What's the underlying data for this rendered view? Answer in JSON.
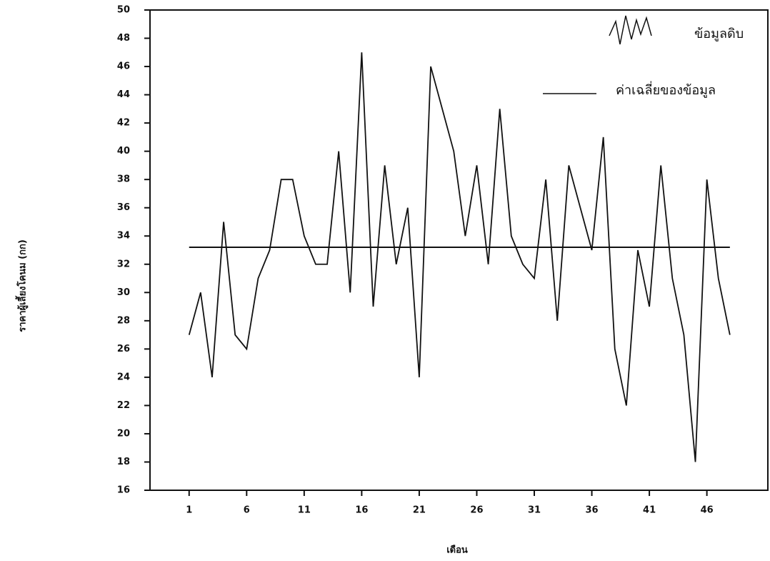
{
  "chart_data": {
    "type": "line",
    "y_label": "ราคาผู้เลี้ยงโคนม (กก)",
    "x_label": "เดือน",
    "x": [
      1,
      2,
      3,
      4,
      5,
      6,
      7,
      8,
      9,
      10,
      11,
      12,
      13,
      14,
      15,
      16,
      17,
      18,
      19,
      20,
      21,
      22,
      23,
      24,
      25,
      26,
      27,
      28,
      29,
      30,
      31,
      32,
      33,
      34,
      35,
      36,
      37,
      38,
      39,
      40,
      41,
      42,
      43,
      44,
      45,
      46,
      47,
      48
    ],
    "series": [
      {
        "name": "ข้อมูลดิบ",
        "color": "#111111",
        "values": [
          27,
          30,
          24,
          35,
          27,
          26,
          31,
          33,
          38,
          38,
          34,
          32,
          32,
          40,
          30,
          47,
          29,
          39,
          32,
          36,
          24,
          46,
          43,
          40,
          34,
          39,
          32,
          43,
          34,
          32,
          31,
          38,
          28,
          39,
          36,
          33,
          41,
          26,
          22,
          33,
          29,
          39,
          31,
          27,
          18,
          38,
          31,
          27
        ]
      }
    ],
    "reference_line": {
      "name": "ค่าเฉลี่ยของข้อมูล",
      "value": 33.2,
      "color": "#111111"
    },
    "xlim": [
      -2.4,
      51.3
    ],
    "ylim": [
      16,
      50
    ],
    "xticks": [
      1,
      6,
      11,
      16,
      21,
      26,
      31,
      36,
      41,
      46
    ],
    "yticks": [
      16,
      18,
      20,
      22,
      24,
      26,
      28,
      30,
      32,
      34,
      36,
      38,
      40,
      42,
      44,
      46,
      48,
      50
    ],
    "grid": false
  }
}
